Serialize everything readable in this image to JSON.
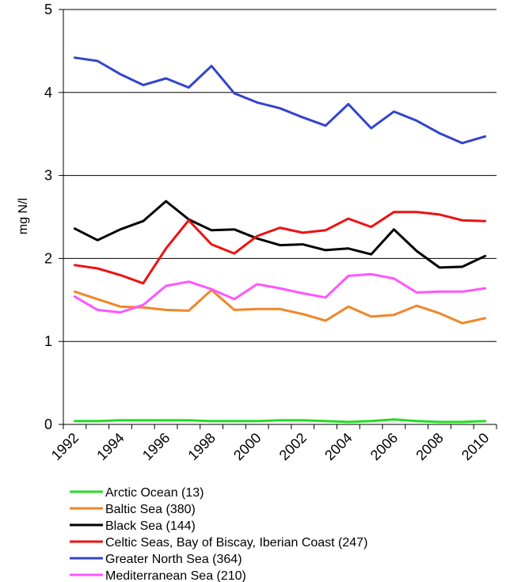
{
  "chart_data": {
    "type": "line",
    "title": "",
    "xlabel": "",
    "ylabel": "mg N/l",
    "ylim": [
      0,
      5
    ],
    "yticks": [
      "0",
      "1",
      "2",
      "3",
      "4",
      "5"
    ],
    "xticks": [
      "1992",
      "1994",
      "1996",
      "1998",
      "2000",
      "2002",
      "2004",
      "2006",
      "2008",
      "2010"
    ],
    "x": [
      1992,
      1993,
      1994,
      1995,
      1996,
      1997,
      1998,
      1999,
      2000,
      2001,
      2002,
      2003,
      2004,
      2005,
      2006,
      2007,
      2008,
      2009,
      2010
    ],
    "grid": "horizontal",
    "legend_position": "bottom",
    "series": [
      {
        "name": "Arctic Ocean (13)",
        "color": "#22dd22",
        "values": [
          0.04,
          0.04,
          0.05,
          0.05,
          0.05,
          0.05,
          0.04,
          0.04,
          0.04,
          0.05,
          0.05,
          0.04,
          0.03,
          0.04,
          0.06,
          0.04,
          0.03,
          0.03,
          0.04
        ]
      },
      {
        "name": "Baltic Sea (380)",
        "color": "#f0862a",
        "values": [
          1.6,
          1.51,
          1.42,
          1.41,
          1.38,
          1.37,
          1.62,
          1.38,
          1.39,
          1.39,
          1.33,
          1.25,
          1.42,
          1.3,
          1.32,
          1.43,
          1.34,
          1.22,
          1.28
        ]
      },
      {
        "name": "Black Sea (144)",
        "color": "#000000",
        "values": [
          2.36,
          2.22,
          2.35,
          2.45,
          2.69,
          2.47,
          2.34,
          2.35,
          2.24,
          2.16,
          2.17,
          2.1,
          2.12,
          2.05,
          2.35,
          2.09,
          1.89,
          1.9,
          2.03
        ]
      },
      {
        "name": "Celtic Seas, Bay of Biscay, Iberian Coast (247)",
        "color": "#ee1111",
        "values": [
          1.92,
          1.88,
          1.8,
          1.7,
          2.12,
          2.46,
          2.17,
          2.06,
          2.27,
          2.37,
          2.31,
          2.34,
          2.48,
          2.38,
          2.56,
          2.56,
          2.53,
          2.46,
          2.45
        ]
      },
      {
        "name": "Greater North Sea (364)",
        "color": "#3344cc",
        "values": [
          4.42,
          4.38,
          4.22,
          4.09,
          4.17,
          4.06,
          4.32,
          3.99,
          3.88,
          3.81,
          3.7,
          3.6,
          3.86,
          3.57,
          3.77,
          3.66,
          3.51,
          3.39,
          3.47
        ]
      },
      {
        "name": "Mediterranean Sea (210)",
        "color": "#ff55ff",
        "values": [
          1.54,
          1.38,
          1.35,
          1.44,
          1.67,
          1.72,
          1.63,
          1.51,
          1.69,
          1.64,
          1.58,
          1.53,
          1.79,
          1.81,
          1.76,
          1.59,
          1.6,
          1.6,
          1.64
        ]
      }
    ]
  }
}
